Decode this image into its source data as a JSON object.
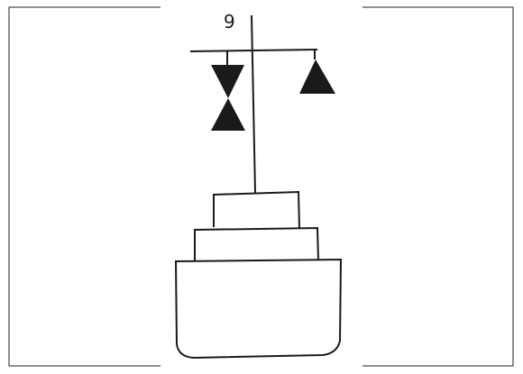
{
  "figure": {
    "label": "9",
    "colors": {
      "line": "#1a1a1a",
      "fill": "#1a1a1a",
      "border": "#222222",
      "background": "#ffffff"
    }
  }
}
